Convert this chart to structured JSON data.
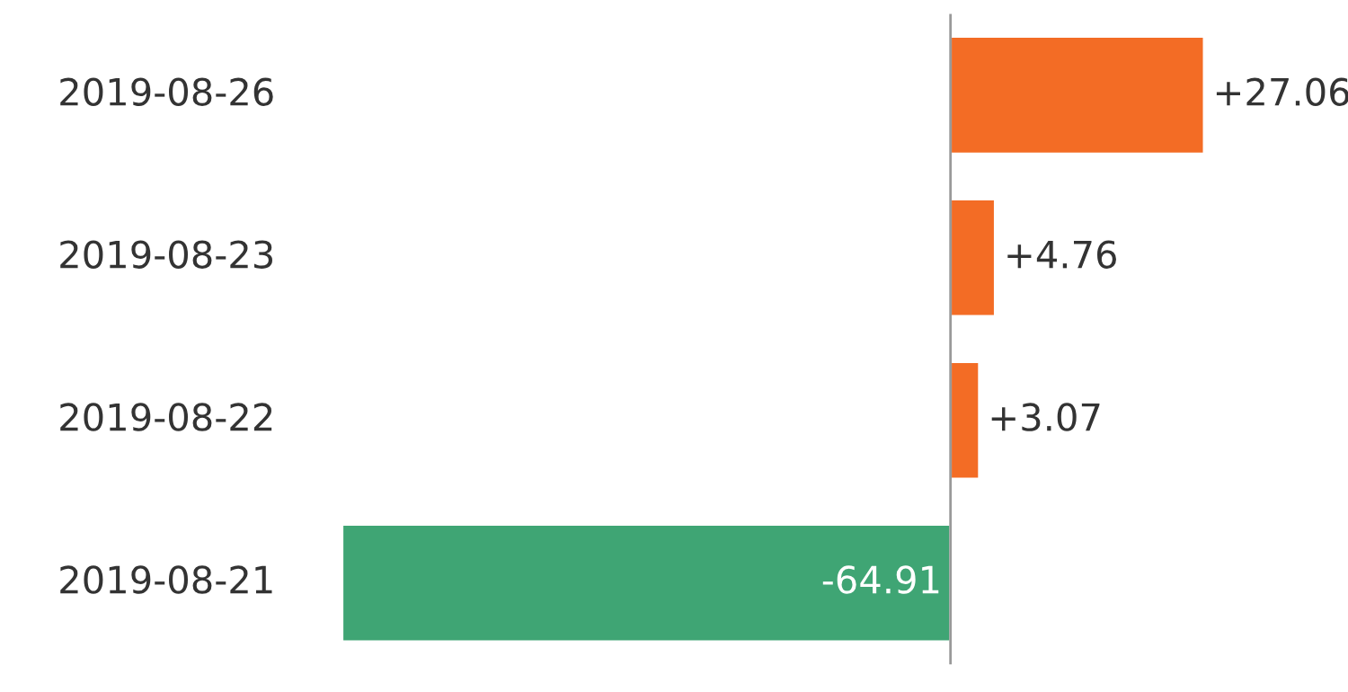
{
  "chart_data": {
    "type": "bar",
    "orientation": "horizontal",
    "categories": [
      "2019-08-26",
      "2019-08-23",
      "2019-08-22",
      "2019-08-21"
    ],
    "values": [
      27.06,
      4.76,
      3.07,
      -64.91
    ],
    "colors": [
      "#f36c25",
      "#f36c25",
      "#f36c25",
      "#3fa574"
    ],
    "value_labels": [
      "+27.06",
      "+4.76",
      "+3.07",
      "-64.91"
    ],
    "grid": false,
    "legend": false
  }
}
